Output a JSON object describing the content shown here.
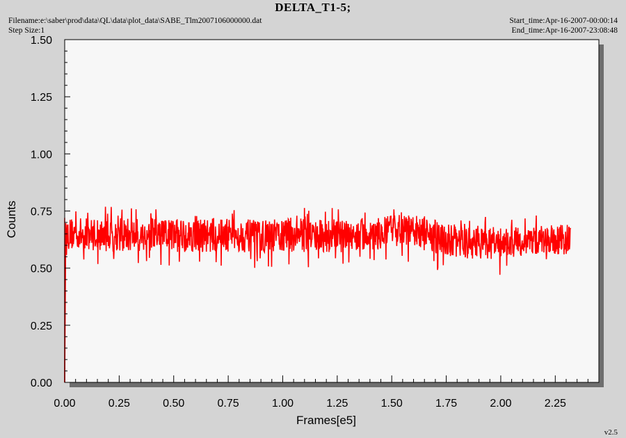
{
  "header": {
    "title": "DELTA_T1-5;",
    "filename": "Filename:e:\\saber\\prod\\data\\QL\\data\\plot_data\\SABE_Tlm2007106000000.dat",
    "step_size": "Step Size:1",
    "start_time": "Start_time:Apr-16-2007-00:00:14",
    "end_time": "End_time:Apr-16-2007-23:08:48"
  },
  "footer": {
    "version": "v2.5"
  },
  "colors": {
    "series": "#ff0000",
    "plot_bg": "#f7f7f7",
    "page_bg": "#d4d4d4",
    "shadow": "#6e6e6e"
  },
  "chart_data": {
    "type": "line",
    "title": "DELTA_T1-5;",
    "xlabel": "Frames[e5]",
    "ylabel": "Counts",
    "xlim": [
      0,
      2.45
    ],
    "ylim": [
      0,
      1.5
    ],
    "xticks": [
      "0.00",
      "0.25",
      "0.50",
      "0.75",
      "1.00",
      "1.25",
      "1.50",
      "1.75",
      "2.00",
      "2.25"
    ],
    "yticks": [
      "0.00",
      "0.25",
      "0.50",
      "0.75",
      "1.00",
      "1.25",
      "1.50"
    ],
    "grid": false,
    "series": [
      {
        "color": "#ff0000",
        "x": [
          0.0,
          0.005,
          0.01,
          0.1,
          0.25,
          0.5,
          0.7,
          0.9,
          1.1,
          1.3,
          1.45,
          1.55,
          1.6,
          1.7,
          1.8,
          1.9,
          2.0,
          2.1,
          2.2,
          2.32
        ],
        "y": [
          0.0,
          0.65,
          0.65,
          0.65,
          0.645,
          0.645,
          0.645,
          0.64,
          0.645,
          0.64,
          0.645,
          0.67,
          0.655,
          0.635,
          0.615,
          0.61,
          0.61,
          0.615,
          0.62,
          0.62
        ],
        "band_low": [
          0.0,
          0.58,
          0.58,
          0.58,
          0.57,
          0.57,
          0.57,
          0.57,
          0.57,
          0.57,
          0.58,
          0.6,
          0.59,
          0.56,
          0.54,
          0.54,
          0.54,
          0.55,
          0.56,
          0.56
        ],
        "band_high": [
          0.0,
          0.72,
          0.72,
          0.72,
          0.72,
          0.72,
          0.72,
          0.71,
          0.72,
          0.71,
          0.72,
          0.75,
          0.72,
          0.71,
          0.69,
          0.68,
          0.68,
          0.68,
          0.69,
          0.69
        ]
      }
    ]
  }
}
